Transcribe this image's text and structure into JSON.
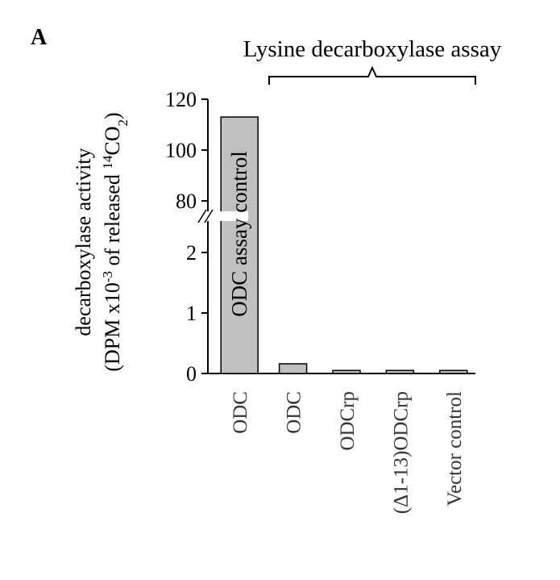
{
  "chart_data": {
    "type": "bar",
    "panel_label": "A",
    "title": "Lysine decarboxylase assay",
    "ylabel_lines": [
      [
        "decarboxylase activity"
      ],
      [
        "(DPM x10",
        "-3",
        " of released ",
        "14",
        "CO",
        "2",
        ")"
      ]
    ],
    "annotation": "ODC assay control",
    "categories": [
      "ODC",
      "ODC",
      "ODCrp",
      "(Δ1-13)ODCrp",
      "Vector control"
    ],
    "values": [
      113,
      0.16,
      0.05,
      0.05,
      0.05
    ],
    "color": "#c0c0c0",
    "ylim": [
      0,
      120
    ],
    "y_break": [
      2.6,
      74
    ],
    "yticks": [
      0,
      1,
      2,
      80,
      100,
      120
    ]
  }
}
